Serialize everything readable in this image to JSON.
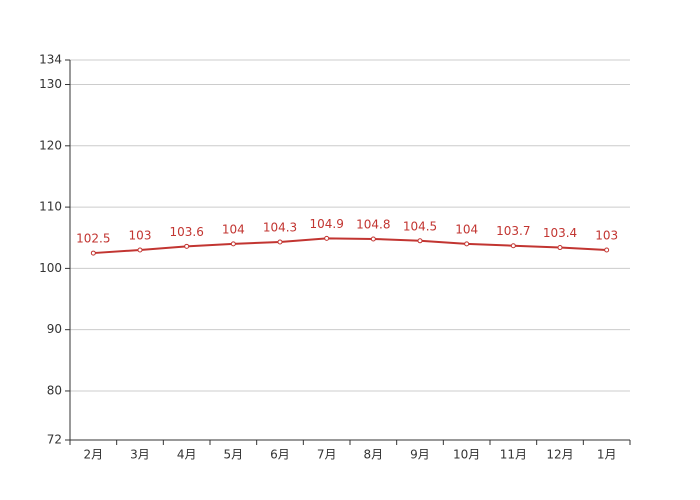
{
  "chart_data": {
    "type": "line",
    "categories": [
      "2月",
      "3月",
      "4月",
      "5月",
      "6月",
      "7月",
      "8月",
      "9月",
      "10月",
      "11月",
      "12月",
      "1月"
    ],
    "series": [
      {
        "color": "#c23531",
        "values": [
          102.5,
          103,
          103.6,
          104,
          104.3,
          104.9,
          104.8,
          104.5,
          104,
          103.7,
          103.4,
          103
        ]
      }
    ],
    "ylim": [
      72,
      134
    ],
    "yticks": [
      72,
      80,
      90,
      100,
      110,
      120,
      130,
      134
    ],
    "grid": true
  }
}
